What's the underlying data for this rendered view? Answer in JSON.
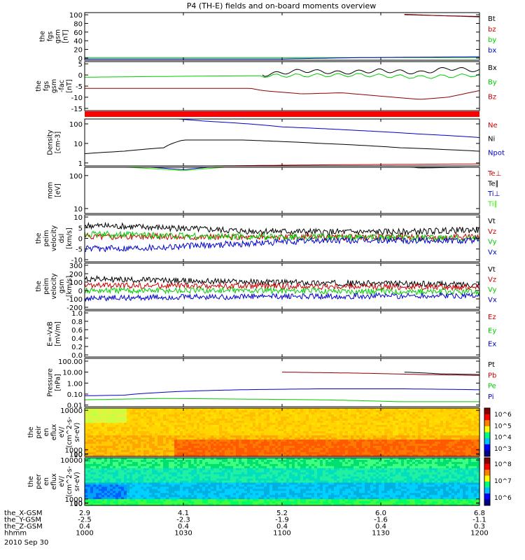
{
  "title": "P4 (TH-E) fields and on-board moments overview",
  "colors": {
    "black": "#000000",
    "red": "#cc0000",
    "darkred": "#8b0000",
    "green": "#00cc00",
    "blue": "#0000cc",
    "lime": "#33ee00"
  },
  "time_ticks": [
    "1000",
    "1030",
    "1100",
    "1130",
    "1200"
  ],
  "ephemeris": [
    {
      "label": "the_X-GSM",
      "values": [
        "2.9",
        "4.1",
        "5.2",
        "6.0",
        "6.8"
      ]
    },
    {
      "label": "the_Y-GSM",
      "values": [
        "-2.5",
        "-2.3",
        "-1.9",
        "-1.6",
        "-1.1"
      ]
    },
    {
      "label": "the_Z-GSM",
      "values": [
        "0.4",
        "0.4",
        "0.4",
        "0.4",
        "0.3"
      ]
    },
    {
      "label": "hhmm",
      "values": [
        "1000",
        "1030",
        "1100",
        "1130",
        "1200"
      ]
    }
  ],
  "date": "2010 Sep 30",
  "chart_data": [
    {
      "type": "line",
      "ylabel": [
        "the",
        "fgs",
        "gsm",
        "[nT]"
      ],
      "yticks": [
        "100",
        "80",
        "60",
        "40",
        "20",
        "0"
      ],
      "legend": [
        {
          "name": "Bt",
          "color": "black"
        },
        {
          "name": "bz",
          "color": "red"
        },
        {
          "name": "by",
          "color": "green"
        },
        {
          "name": "bx",
          "color": "blue"
        }
      ],
      "series": [
        {
          "name": "Bt",
          "color": "black",
          "points": [
            [
              0.81,
              101
            ],
            [
              0.9,
              98
            ],
            [
              1.0,
              96
            ]
          ]
        },
        {
          "name": "bz",
          "color": "darkred",
          "points": [
            [
              0.81,
              100
            ],
            [
              0.9,
              98
            ],
            [
              1.0,
              95
            ]
          ]
        },
        {
          "name": "by",
          "color": "green",
          "points": [
            [
              0,
              1
            ],
            [
              0.5,
              1
            ],
            [
              1,
              1
            ]
          ]
        },
        {
          "name": "bx",
          "color": "blue",
          "points": [
            [
              0,
              -2
            ],
            [
              0.5,
              -2
            ],
            [
              0.7,
              1
            ],
            [
              0.85,
              2
            ],
            [
              1,
              3
            ]
          ]
        }
      ]
    },
    {
      "type": "line",
      "ylabel": [
        "the",
        "fgs",
        "gsm",
        "-fac",
        "[nT]"
      ],
      "yticks": [
        "5",
        "0",
        "-5",
        "-10",
        "-15"
      ],
      "legend": [
        {
          "name": "Bx",
          "color": "black"
        },
        {
          "name": "By",
          "color": "green"
        },
        {
          "name": "Bz",
          "color": "red"
        }
      ],
      "series": [
        {
          "name": "Bx",
          "color": "black",
          "points": [
            [
              0.45,
              0
            ],
            [
              0.55,
              2
            ],
            [
              0.65,
              1
            ],
            [
              0.75,
              2
            ],
            [
              0.85,
              1
            ],
            [
              0.92,
              3
            ],
            [
              1.0,
              2
            ]
          ]
        },
        {
          "name": "By",
          "color": "green",
          "points": [
            [
              0,
              -1
            ],
            [
              0.3,
              -0.5
            ],
            [
              0.5,
              -0.3
            ],
            [
              0.7,
              0
            ],
            [
              0.85,
              -1
            ],
            [
              1.0,
              0
            ]
          ]
        },
        {
          "name": "Bz",
          "color": "darkred",
          "points": [
            [
              0,
              -6
            ],
            [
              0.42,
              -6
            ],
            [
              0.45,
              -7
            ],
            [
              0.55,
              -8.5
            ],
            [
              0.65,
              -8
            ],
            [
              0.75,
              -9.5
            ],
            [
              0.85,
              -11
            ],
            [
              0.92,
              -10
            ],
            [
              1.0,
              -7
            ]
          ]
        }
      ]
    },
    {
      "type": "line",
      "ylabel": [
        "Density",
        "[cm-3]"
      ],
      "yscale": "log",
      "yticks": [
        "100",
        "10",
        "1"
      ],
      "legend": [
        {
          "name": "Ne",
          "color": "red"
        },
        {
          "name": "Ni",
          "color": "black"
        },
        {
          "name": "Npot",
          "color": "blue"
        }
      ],
      "series": [
        {
          "name": "Ne",
          "color": "red",
          "points": [
            [
              0,
              0.6
            ],
            [
              0.3,
              0.7
            ],
            [
              0.6,
              0.8
            ],
            [
              1.0,
              0.9
            ]
          ]
        },
        {
          "name": "Ni",
          "color": "black",
          "points": [
            [
              0,
              3
            ],
            [
              0.1,
              4
            ],
            [
              0.2,
              6
            ],
            [
              0.25,
              15
            ],
            [
              0.4,
              15
            ],
            [
              0.6,
              10
            ],
            [
              0.8,
              6
            ],
            [
              1.0,
              4
            ]
          ]
        },
        {
          "name": "Npot",
          "color": "blue",
          "points": [
            [
              0.2,
              200
            ],
            [
              0.3,
              140
            ],
            [
              0.5,
              70
            ],
            [
              0.7,
              45
            ],
            [
              0.85,
              30
            ],
            [
              1.0,
              20
            ]
          ]
        }
      ]
    },
    {
      "type": "line",
      "ylabel": [
        "mom",
        "[eV]"
      ],
      "yscale": "log",
      "yticks": [
        "100",
        "10"
      ],
      "legend": [
        {
          "name": "Te⊥",
          "color": "red"
        },
        {
          "name": "Te∥",
          "color": "black"
        },
        {
          "name": "Ti⊥",
          "color": "blue"
        },
        {
          "name": "Ti∥",
          "color": "lime"
        }
      ],
      "series": [
        {
          "name": "Te⊥",
          "color": "red",
          "points": [
            [
              0,
              400
            ],
            [
              0.2,
              350
            ],
            [
              0.5,
              300
            ],
            [
              0.75,
              260
            ],
            [
              1.0,
              250
            ]
          ]
        },
        {
          "name": "Te∥",
          "color": "black",
          "points": [
            [
              0,
              300
            ],
            [
              0.25,
              260
            ],
            [
              0.5,
              240
            ],
            [
              0.75,
              210
            ],
            [
              0.85,
              170
            ],
            [
              1.0,
              180
            ]
          ]
        },
        {
          "name": "Ti⊥",
          "color": "blue",
          "points": [
            [
              0,
              250
            ],
            [
              0.1,
              200
            ],
            [
              0.25,
              150
            ],
            [
              0.5,
              260
            ],
            [
              0.75,
              380
            ],
            [
              1.0,
              500
            ]
          ]
        },
        {
          "name": "Ti∥",
          "color": "lime",
          "points": [
            [
              0,
              220
            ],
            [
              0.1,
              180
            ],
            [
              0.25,
              140
            ],
            [
              0.5,
              230
            ],
            [
              0.75,
              280
            ],
            [
              1.0,
              320
            ]
          ]
        }
      ]
    },
    {
      "type": "line",
      "ylabel": [
        "the",
        "peim",
        "velocity",
        "dsl",
        "[km/s]"
      ],
      "yticks": [
        "10",
        "5",
        "0",
        "-5",
        "-10"
      ],
      "legend": [
        {
          "name": "Vt",
          "color": "black"
        },
        {
          "name": "Vz",
          "color": "red"
        },
        {
          "name": "Vy",
          "color": "green"
        },
        {
          "name": "Vx",
          "color": "blue"
        }
      ],
      "series": [
        {
          "name": "Vt",
          "color": "black",
          "points": [
            [
              0,
              6
            ],
            [
              0.2,
              5
            ],
            [
              0.4,
              3.5
            ],
            [
              0.6,
              3
            ],
            [
              0.8,
              3
            ],
            [
              1.0,
              4
            ]
          ]
        },
        {
          "name": "Vz",
          "color": "red",
          "points": [
            [
              0,
              1
            ],
            [
              0.5,
              0.5
            ],
            [
              1.0,
              0.5
            ]
          ]
        },
        {
          "name": "Vy",
          "color": "green",
          "points": [
            [
              0,
              2
            ],
            [
              0.3,
              1
            ],
            [
              0.6,
              0.5
            ],
            [
              1.0,
              0
            ]
          ]
        },
        {
          "name": "Vx",
          "color": "blue",
          "points": [
            [
              0,
              -5
            ],
            [
              0.2,
              -4
            ],
            [
              0.4,
              -2.5
            ],
            [
              0.6,
              -1
            ],
            [
              0.8,
              -1
            ],
            [
              1.0,
              -1
            ]
          ]
        }
      ]
    },
    {
      "type": "line",
      "ylabel": [
        "the",
        "peim",
        "velocity",
        "gsm",
        "[km/s]"
      ],
      "yticks": [
        "300",
        "200",
        "100",
        "0",
        "-100",
        "-200"
      ],
      "legend": [
        {
          "name": "Vt",
          "color": "black"
        },
        {
          "name": "Vz",
          "color": "red"
        },
        {
          "name": "Vy",
          "color": "green"
        },
        {
          "name": "Vx",
          "color": "blue"
        }
      ],
      "series": [
        {
          "name": "Vt",
          "color": "black",
          "points": [
            [
              0,
              140
            ],
            [
              0.3,
              110
            ],
            [
              0.6,
              90
            ],
            [
              1.0,
              70
            ]
          ]
        },
        {
          "name": "Vz",
          "color": "red",
          "points": [
            [
              0,
              60
            ],
            [
              0.5,
              50
            ],
            [
              1.0,
              40
            ]
          ]
        },
        {
          "name": "Vy",
          "color": "green",
          "points": [
            [
              0,
              0
            ],
            [
              0.5,
              0
            ],
            [
              1.0,
              -20
            ]
          ]
        },
        {
          "name": "Vx",
          "color": "blue",
          "points": [
            [
              0,
              -90
            ],
            [
              0.5,
              -70
            ],
            [
              1.0,
              -60
            ]
          ]
        }
      ]
    },
    {
      "type": "line",
      "ylabel": [
        "E=-VxB",
        "[mV/m]"
      ],
      "yticks": [
        "1.0",
        "0.8",
        "0.6",
        "0.4",
        "0.2",
        "0.0"
      ],
      "legend": [
        {
          "name": "Ez",
          "color": "red"
        },
        {
          "name": "Ey",
          "color": "green"
        },
        {
          "name": "Ex",
          "color": "blue"
        }
      ],
      "series": []
    },
    {
      "type": "line",
      "ylabel": [
        "Pressure",
        "[nPa]"
      ],
      "yscale": "log",
      "yticks": [
        "100.00",
        "10.00",
        "1.00",
        "0.10",
        "0.01"
      ],
      "legend": [
        {
          "name": "Pt",
          "color": "black"
        },
        {
          "name": "Pb",
          "color": "red"
        },
        {
          "name": "Pe",
          "color": "green"
        },
        {
          "name": "Pi",
          "color": "blue"
        }
      ],
      "series": [
        {
          "name": "Pt",
          "color": "black",
          "points": [
            [
              0.81,
              10
            ],
            [
              0.9,
              7
            ],
            [
              1.0,
              6
            ]
          ]
        },
        {
          "name": "Pb",
          "color": "darkred",
          "points": [
            [
              0.5,
              10
            ],
            [
              0.7,
              8
            ],
            [
              0.85,
              6
            ],
            [
              1.0,
              5
            ]
          ]
        },
        {
          "name": "Pe",
          "color": "green",
          "points": [
            [
              0,
              0.03
            ],
            [
              0.2,
              0.04
            ],
            [
              0.6,
              0.03
            ],
            [
              0.8,
              0.02
            ],
            [
              1.0,
              0.02
            ]
          ]
        },
        {
          "name": "Pi",
          "color": "blue",
          "points": [
            [
              0,
              0.07
            ],
            [
              0.1,
              0.08
            ],
            [
              0.25,
              0.18
            ],
            [
              0.4,
              0.25
            ],
            [
              0.6,
              0.3
            ],
            [
              0.8,
              0.3
            ],
            [
              1.0,
              0.25
            ]
          ]
        }
      ]
    },
    {
      "type": "heatmap",
      "ylabel": [
        "the",
        "peir",
        "en",
        "eflux",
        "eV/",
        "(cm^2-s-",
        "sr-eV)"
      ],
      "yticks": [
        "10000",
        "1000",
        "100",
        "10"
      ],
      "colorbar": [
        "10^6",
        "10^5",
        "10^4",
        "10^3"
      ]
    },
    {
      "type": "heatmap",
      "ylabel": [
        "the",
        "peer",
        "en",
        "eflux",
        "eV/",
        "(cm^2-s-",
        "sr-eV)"
      ],
      "yticks": [
        "10000",
        "1000",
        "100",
        "10"
      ],
      "colorbar": [
        "10^8",
        "10^7",
        "10^6"
      ]
    }
  ]
}
